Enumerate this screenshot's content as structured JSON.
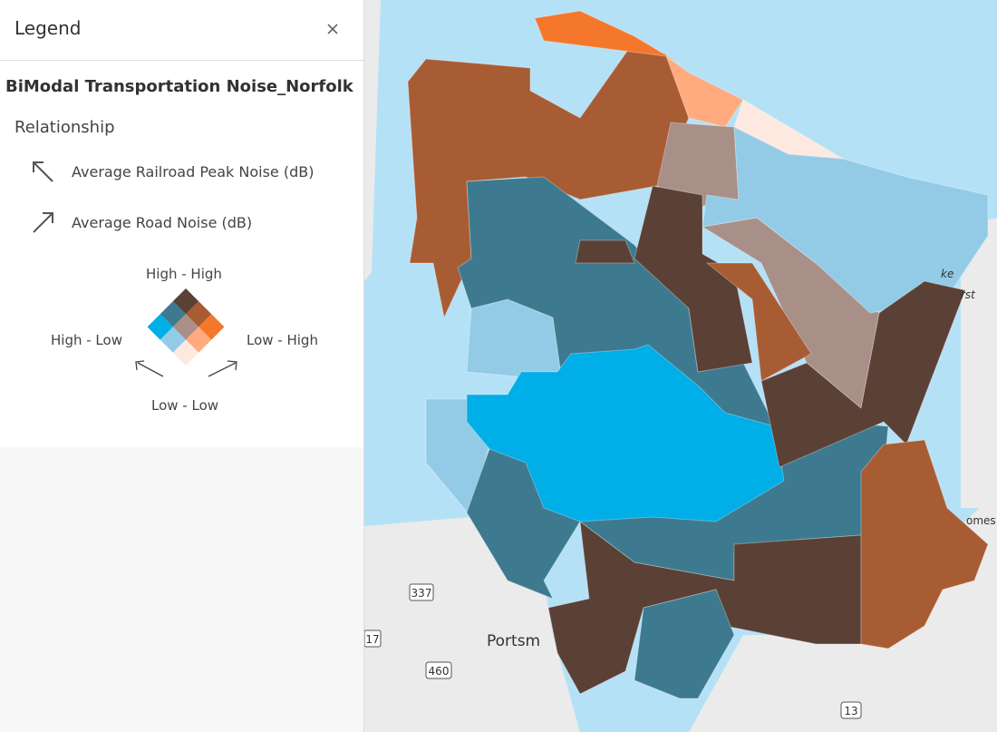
{
  "legend": {
    "title": "Legend",
    "layer_title": "BiModal Transportation Noise_Norfolk",
    "relationship_label": "Relationship",
    "items": [
      {
        "label": "Average Railroad Peak Noise (dB)"
      },
      {
        "label": "Average Road Noise (dB)"
      }
    ],
    "corners": {
      "top": "High - High",
      "left": "High - Low",
      "right": "Low - High",
      "bottom": "Low - Low"
    }
  },
  "map": {
    "labels": [
      "Portsm",
      "337",
      "17",
      "460",
      "13",
      "omes",
      "ke",
      "rst"
    ]
  }
}
